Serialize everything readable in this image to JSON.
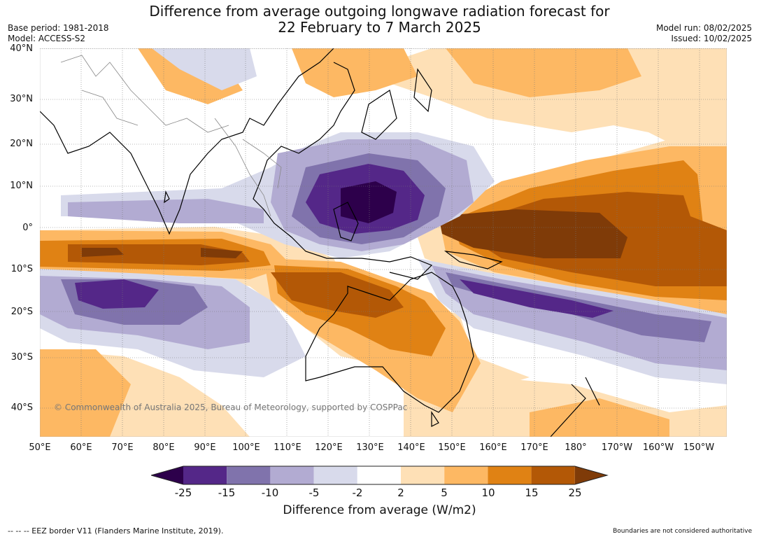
{
  "title_line1": "Difference from average outgoing longwave radiation forecast for",
  "title_line2": "22 February to 7 March 2025",
  "base_period": "Base period: 1981-2018",
  "model": "Model: ACCESS-S2",
  "model_run": "Model run: 08/02/2025",
  "issued": "Issued: 10/02/2025",
  "copyright": "© Commonwealth of Australia 2025, Bureau of Meteorology, supported by COSPPac",
  "lat_labels": [
    "40°N",
    "30°N",
    "20°N",
    "10°N",
    "0°",
    "10°S",
    "20°S",
    "30°S",
    "40°S"
  ],
  "lon_labels": [
    "50°E",
    "60°E",
    "70°E",
    "80°E",
    "90°E",
    "100°E",
    "110°E",
    "120°E",
    "130°E",
    "140°E",
    "150°E",
    "160°E",
    "170°E",
    "180°",
    "170°W",
    "160°W",
    "150°W"
  ],
  "colorbar": {
    "title": "Difference from average (W/m2)",
    "labels": [
      "-25",
      "-15",
      "-10",
      "-5",
      "-2",
      "2",
      "5",
      "10",
      "15",
      "25"
    ],
    "colors": [
      "#2d004b",
      "#542788",
      "#8073ac",
      "#b2abd2",
      "#d8daeb",
      "#ffffff",
      "#fee0b6",
      "#fdb863",
      "#e08214",
      "#b35806",
      "#7f3b08"
    ]
  },
  "footer_left": "--  --  -- EEZ border V11 (Flanders Marine Institute, 2019).",
  "footer_right": "Boundaries are not considered authoritative"
}
